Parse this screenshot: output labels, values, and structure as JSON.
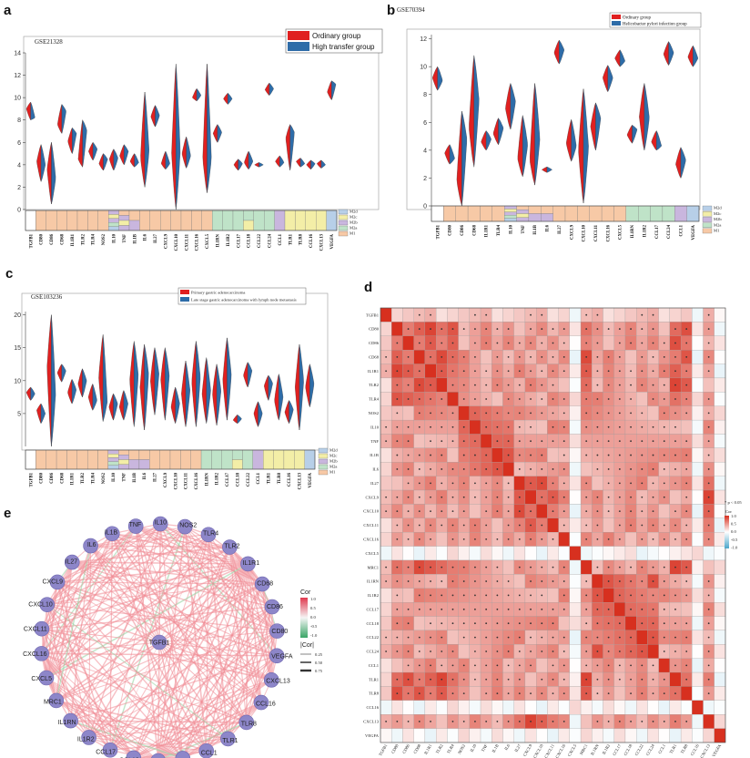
{
  "panels": {
    "a": "a",
    "b": "b",
    "c": "c",
    "d": "d",
    "e": "e"
  },
  "category_legend": [
    "M2d",
    "M2c",
    "M2b",
    "M2a",
    "M1"
  ],
  "category_colors": {
    "M1": "#f7c9a6",
    "M2a": "#bfe3c8",
    "M2b": "#c9b6de",
    "M2c": "#f3eea7",
    "M2d": "#b7cfe8"
  },
  "colors": {
    "red": "#e02020",
    "blue": "#2e6ca8"
  },
  "chart_data": [
    {
      "id": "a",
      "type": "split-violin",
      "dataset": "GSE21328",
      "legend": [
        "Ordinary group",
        "High transfer group"
      ],
      "yticks": [
        0,
        2,
        4,
        6,
        8,
        10,
        12,
        14
      ],
      "ylim": [
        0,
        14
      ],
      "genes": [
        "TGFB1",
        "CD80",
        "CD86",
        "CD68",
        "IL1R1",
        "TLR2",
        "TLR4",
        "NOS2",
        "IL10",
        "TNF",
        "IL1B",
        "IL6",
        "IL27",
        "CXCL9",
        "CXCL10",
        "CXCL11",
        "CXCL16",
        "CXCL5",
        "IL1RN",
        "IL1R2",
        "CCL17",
        "CCL18",
        "CCL22",
        "CCL24",
        "CCL1",
        "TLR1",
        "TLR8",
        "CCL16",
        "CXCL13",
        "VEGFA"
      ],
      "cats": [
        "",
        "M1",
        "M1",
        "M1",
        "M1",
        "M1",
        "M1",
        "M1",
        "M2b|M2c|M2b|M2a|M2d",
        "M1|M2b|M2c|M2b",
        "M1|M2b",
        "M1",
        "M1",
        "M1",
        "M1",
        "M1",
        "M1",
        "M1",
        "M2a",
        "M2a",
        "M2a",
        "M2a|M2c",
        "M2a",
        "M2a",
        "M2b",
        "M2c",
        "M2c",
        "M2c",
        "M2c",
        "M2d"
      ],
      "means": [
        [
          9.0,
          8.2
        ],
        [
          4.3,
          4.0
        ],
        [
          3.6,
          2.8
        ],
        [
          7.6,
          8.8
        ],
        [
          6.1,
          6.8
        ],
        [
          4.5,
          7.1
        ],
        [
          5.2,
          5.4
        ],
        [
          4.1,
          4.5
        ],
        [
          4.5,
          4.6
        ],
        [
          4.8,
          5.2
        ],
        [
          4.3,
          4.2
        ],
        [
          4.6,
          5.2
        ],
        [
          8.3,
          8.4
        ],
        [
          4.1,
          4.1
        ],
        [
          5.0,
          5.2
        ],
        [
          5.0,
          4.8
        ],
        [
          10.0,
          10.2
        ],
        [
          4.5,
          4.5
        ],
        [
          6.8,
          6.9
        ],
        [
          9.9,
          9.9
        ],
        [
          4.0,
          4.1
        ],
        [
          4.2,
          4.3
        ],
        [
          4.0,
          4.0
        ],
        [
          10.7,
          10.8
        ],
        [
          4.3,
          4.2
        ],
        [
          6.4,
          6.9
        ],
        [
          4.3,
          4.1
        ],
        [
          4.0,
          4.1
        ],
        [
          4.1,
          4.0
        ],
        [
          10.5,
          11.2
        ]
      ],
      "ranges": [
        [
          8,
          9.6
        ],
        [
          2.5,
          5.8
        ],
        [
          0.5,
          6
        ],
        [
          6.8,
          9.4
        ],
        [
          5.0,
          7.3
        ],
        [
          3.8,
          8.0
        ],
        [
          4.4,
          6.0
        ],
        [
          3.5,
          5.0
        ],
        [
          3.5,
          5.4
        ],
        [
          4.0,
          5.8
        ],
        [
          3.8,
          5.0
        ],
        [
          2.0,
          10.5
        ],
        [
          7.4,
          9.3
        ],
        [
          3.6,
          5.2
        ],
        [
          0,
          13
        ],
        [
          3.7,
          6.5
        ],
        [
          9.7,
          10.8
        ],
        [
          1.5,
          13
        ],
        [
          6.0,
          7.6
        ],
        [
          9.4,
          10.4
        ],
        [
          3.5,
          4.5
        ],
        [
          3.6,
          5.2
        ],
        [
          3.8,
          4.2
        ],
        [
          10.2,
          11.3
        ],
        [
          3.8,
          4.8
        ],
        [
          3.5,
          7.6
        ],
        [
          3.8,
          4.6
        ],
        [
          3.6,
          4.4
        ],
        [
          3.7,
          4.4
        ],
        [
          9.8,
          11.5
        ]
      ]
    },
    {
      "id": "b",
      "type": "split-violin",
      "dataset": "GSE70394",
      "legend": [
        "Ordinary group",
        "Helicobacter pylori infection group"
      ],
      "yticks": [
        0,
        2,
        4,
        6,
        8,
        10,
        12
      ],
      "ylim": [
        0,
        12.3
      ],
      "genes": [
        "TGFB1",
        "CD80",
        "CD86",
        "CD68",
        "IL1R1",
        "TLR4",
        "IL10",
        "TNF",
        "IL1B",
        "IL6",
        "IL27",
        "CXCL9",
        "CXCL10",
        "CXCL11",
        "CXCL16",
        "CXCL5",
        "IL1RN",
        "IL1R2",
        "CCL17",
        "CCL24",
        "CCL1",
        "VEGFA"
      ],
      "cats": [
        "",
        "M1",
        "M1",
        "M1",
        "M1",
        "M1",
        "M2b|M2c|M2b|M2a|M2d",
        "M1|M2b|M2c|M2b",
        "M1|M2b",
        "M1|M2b",
        "M1",
        "M1",
        "M1",
        "M1",
        "M1",
        "M1",
        "M2a",
        "M2a",
        "M2a",
        "M2a",
        "M2b",
        "M2d"
      ],
      "means": [
        [
          9.2,
          9.0
        ],
        [
          3.8,
          3.4
        ],
        [
          1.8,
          4.8
        ],
        [
          5.6,
          7.6
        ],
        [
          4.6,
          4.8
        ],
        [
          5.2,
          5.6
        ],
        [
          7.0,
          7.5
        ],
        [
          3.4,
          4.4
        ],
        [
          3.3,
          4.8
        ],
        [
          2.6,
          2.6
        ],
        [
          11.0,
          11.2
        ],
        [
          4.5,
          4.3
        ],
        [
          4.0,
          4.2
        ],
        [
          5.7,
          6.3
        ],
        [
          9.2,
          9.2
        ],
        [
          10.6,
          10.4
        ],
        [
          5.1,
          5.5
        ],
        [
          6.4,
          6.3
        ],
        [
          4.6,
          4.3
        ],
        [
          10.9,
          11.0
        ],
        [
          3.0,
          3.3
        ],
        [
          10.7,
          10.6
        ]
      ],
      "ranges": [
        [
          8.3,
          10.0
        ],
        [
          3.0,
          4.4
        ],
        [
          0,
          6.8
        ],
        [
          2.8,
          10.8
        ],
        [
          4.0,
          5.4
        ],
        [
          4.4,
          6.3
        ],
        [
          5.5,
          8.8
        ],
        [
          2.1,
          6.5
        ],
        [
          1.5,
          8.8
        ],
        [
          2.4,
          2.8
        ],
        [
          10.2,
          11.9
        ],
        [
          3.2,
          6.2
        ],
        [
          0.2,
          8.4
        ],
        [
          4.0,
          7.4
        ],
        [
          8.2,
          10.1
        ],
        [
          10.0,
          11.2
        ],
        [
          4.5,
          5.8
        ],
        [
          4.0,
          8.8
        ],
        [
          4.0,
          5.4
        ],
        [
          10.1,
          11.8
        ],
        [
          2.0,
          4.2
        ],
        [
          10.0,
          11.5
        ]
      ]
    },
    {
      "id": "c",
      "type": "split-violin",
      "dataset": "GSE103236",
      "legend": [
        "Primary gastric adenocarcinoma",
        "Late stage gastric adenocarcinoma with lymph node metastasis"
      ],
      "yticks": [
        5,
        10,
        15,
        20
      ],
      "ylim": [
        0,
        20.5
      ],
      "genes": [
        "TGFB1",
        "CD80",
        "CD86",
        "CD68",
        "IL1R1",
        "TLR2",
        "TLR4",
        "NOS2",
        "IL10",
        "TNF",
        "IL1B",
        "IL6",
        "IL27",
        "CXCL9",
        "CXCL10",
        "CXCL11",
        "CXCL16",
        "IL1RN",
        "IL1R2",
        "CCL17",
        "CCL18",
        "CCL22",
        "CCL1",
        "TLR1",
        "TLR8",
        "CCL16",
        "CXCL13",
        "VEGFA"
      ],
      "cats": [
        "",
        "M1",
        "M1",
        "M1",
        "M1",
        "M1",
        "M1",
        "M1",
        "M2b|M2c|M2b|M2a|M2d",
        "M1|M2b|M2c|M2b",
        "M1|M2b",
        "M1|M2b",
        "M1",
        "M1",
        "M1",
        "M1",
        "M1",
        "M2a",
        "M2a",
        "M2a",
        "M2a|M2c",
        "M2a",
        "M2b",
        "M2c",
        "M2c",
        "M2c",
        "M2c",
        "M2d"
      ],
      "means": [
        [
          8.2,
          8.0
        ],
        [
          5.5,
          5.0
        ],
        [
          12.0,
          8.0
        ],
        [
          11.2,
          11.5
        ],
        [
          8.2,
          8.6
        ],
        [
          9.5,
          10.0
        ],
        [
          7.5,
          7.0
        ],
        [
          10.5,
          6.8
        ],
        [
          6.0,
          6.5
        ],
        [
          6.0,
          6.5
        ],
        [
          10.0,
          10.8
        ],
        [
          9.0,
          11.0
        ],
        [
          10.0,
          11.0
        ],
        [
          10.2,
          10.8
        ],
        [
          6.0,
          6.5
        ],
        [
          8.0,
          8.5
        ],
        [
          9.8,
          10.5
        ],
        [
          8.0,
          8.5
        ],
        [
          8.0,
          8.5
        ],
        [
          10.0,
          10.8
        ],
        [
          4.0,
          4.2
        ],
        [
          10.8,
          11.5
        ],
        [
          5.0,
          5.0
        ],
        [
          9.2,
          9.6
        ],
        [
          7.0,
          7.5
        ],
        [
          5.2,
          5.6
        ],
        [
          9.0,
          10.0
        ],
        [
          9.0,
          9.5
        ]
      ],
      "ranges": [
        [
          7.0,
          9.0
        ],
        [
          3.5,
          6.5
        ],
        [
          0,
          20
        ],
        [
          9.8,
          12.5
        ],
        [
          6.5,
          10.2
        ],
        [
          7.5,
          11.8
        ],
        [
          5.5,
          9.5
        ],
        [
          3.8,
          17.0
        ],
        [
          4.0,
          8.0
        ],
        [
          4.0,
          8.5
        ],
        [
          3.0,
          16.0
        ],
        [
          2.5,
          15.5
        ],
        [
          4.8,
          15.0
        ],
        [
          4.0,
          15.0
        ],
        [
          3.5,
          9.0
        ],
        [
          3.0,
          13.0
        ],
        [
          3.0,
          16.0
        ],
        [
          3.5,
          13.5
        ],
        [
          3.2,
          12.5
        ],
        [
          4.0,
          16.5
        ],
        [
          3.5,
          4.8
        ],
        [
          9.0,
          12.8
        ],
        [
          3.0,
          6.8
        ],
        [
          7.0,
          10.8
        ],
        [
          4.0,
          11.0
        ],
        [
          3.5,
          7.0
        ],
        [
          2.5,
          15.5
        ],
        [
          6.0,
          12.5
        ]
      ]
    },
    {
      "id": "d",
      "type": "heatmap",
      "legend_title": "Cor",
      "sig_note": "* p < 0.05",
      "legend_ticks": [
        "1.0",
        "0.5",
        "0.0",
        "-0.5",
        "-1.0"
      ],
      "genes": [
        "TGFB1",
        "CD80",
        "CD86",
        "CD68",
        "IL1R1",
        "TLR2",
        "TLR4",
        "NOS2",
        "IL10",
        "TNF",
        "IL1B",
        "IL6",
        "IL27",
        "CXCL9",
        "CXCL10",
        "CXCL11",
        "CXCL16",
        "CXCL5",
        "MRC1",
        "IL1RN",
        "IL1R2",
        "CCL17",
        "CCL18",
        "CCL22",
        "CCL24",
        "CCL1",
        "TLR1",
        "TLR8",
        "CCL16",
        "CXCL13",
        "VEGFA"
      ],
      "groups": [
        [
          "CD80",
          "CD86",
          "IL1R1",
          "TLR2",
          "TLR4",
          "TLR1",
          "TLR8",
          "MRC1",
          "CD68"
        ],
        [
          "CXCL9",
          "CXCL10",
          "CXCL11",
          "IL27",
          "CXCL13"
        ],
        [
          "CCL17",
          "CCL18",
          "CCL22",
          "CCL24",
          "IL1RN",
          "IL1R2"
        ],
        [
          "IL10",
          "TNF",
          "IL1B",
          "IL6",
          "NOS2"
        ]
      ],
      "neg_genes": [
        "CXCL5",
        "CCL16",
        "VEGFA"
      ]
    },
    {
      "id": "e",
      "type": "network",
      "legend_title": "Cor",
      "legend_ticks": [
        "1.0",
        "0.5",
        "0.0",
        "-0.5",
        "-1.0"
      ],
      "abs_title": "|Cor|",
      "abs_ticks": [
        "0.25",
        "0.50",
        "0.75"
      ],
      "center": "TGFB1",
      "nodes": [
        "TNF",
        "IL10",
        "NOS2",
        "TLR4",
        "TLR2",
        "IL1R1",
        "CD68",
        "CD86",
        "CD80",
        "VEGFA",
        "CXCL13",
        "CCL16",
        "TLR8",
        "TLR1",
        "CCL1",
        "CCL24",
        "CCL22",
        "CCL18",
        "CCL17",
        "IL1R2",
        "IL1RN",
        "MRC1",
        "CXCL5",
        "CXCL16",
        "CXCL11",
        "CXCL10",
        "CXCL9",
        "IL27",
        "IL6",
        "IL1B"
      ]
    }
  ]
}
